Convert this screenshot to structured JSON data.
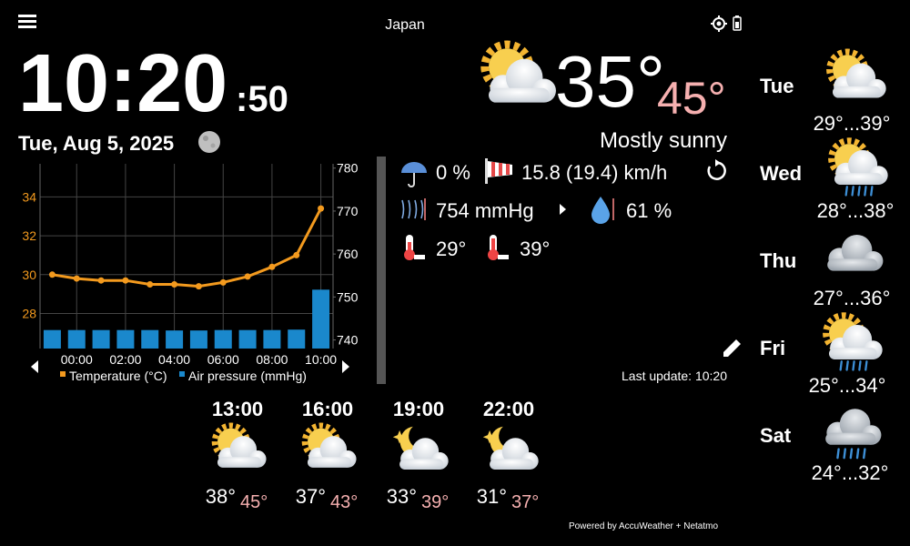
{
  "header": {
    "location": "Japan"
  },
  "clock": {
    "time": "10:20",
    "seconds": ":50",
    "date": "Tue, Aug 5, 2025"
  },
  "current": {
    "temperature": "35°",
    "feels_like": "45°",
    "condition": "Mostly sunny",
    "precipitation": "0 %",
    "wind": "15.8 (19.4) km/h",
    "pressure": "754 mmHg",
    "humidity": "61 %",
    "min_temperature": "29°",
    "max_temperature": "39°",
    "last_update": "Last update: 10:20"
  },
  "chart": {
    "type": "bar+line",
    "categories": [
      null,
      "00:00",
      null,
      "02:00",
      null,
      "04:00",
      null,
      "06:00",
      null,
      "08:00",
      null,
      "10:00"
    ],
    "series": [
      {
        "name": "Temperature (°C)",
        "type": "line",
        "color": "#f39a1e",
        "values": [
          30.0,
          29.8,
          29.7,
          29.7,
          29.5,
          29.5,
          29.4,
          29.6,
          29.9,
          30.4,
          31.0,
          33.4
        ]
      },
      {
        "name": "Air pressure (mmHg)",
        "type": "bar",
        "axis": "y2",
        "color": "#1a88cc",
        "values": [
          742.3,
          742.3,
          742.3,
          742.3,
          742.3,
          742.2,
          742.2,
          742.3,
          742.3,
          742.3,
          742.4,
          751.7
        ]
      }
    ],
    "ylim": [
      26.2,
      35.7
    ],
    "yticks": [
      28,
      30,
      32,
      34
    ],
    "y2lim": [
      738,
      781
    ],
    "y2ticks": [
      740,
      750,
      760,
      770,
      780
    ],
    "grid": true
  },
  "hourly": [
    {
      "time": "13:00",
      "temperature": "38°",
      "feels_like": "45°"
    },
    {
      "time": "16:00",
      "temperature": "37°",
      "feels_like": "43°"
    },
    {
      "time": "19:00",
      "temperature": "33°",
      "feels_like": "39°"
    },
    {
      "time": "22:00",
      "temperature": "31°",
      "feels_like": "37°"
    }
  ],
  "daily": [
    {
      "day": "Tue",
      "range": "29°...39°"
    },
    {
      "day": "Wed",
      "range": "28°...38°"
    },
    {
      "day": "Thu",
      "range": "27°...36°"
    },
    {
      "day": "Fri",
      "range": "25°...34°"
    },
    {
      "day": "Sat",
      "range": "24°...32°"
    }
  ],
  "footer": {
    "credit": "Powered by AccuWeather + Netatmo"
  }
}
